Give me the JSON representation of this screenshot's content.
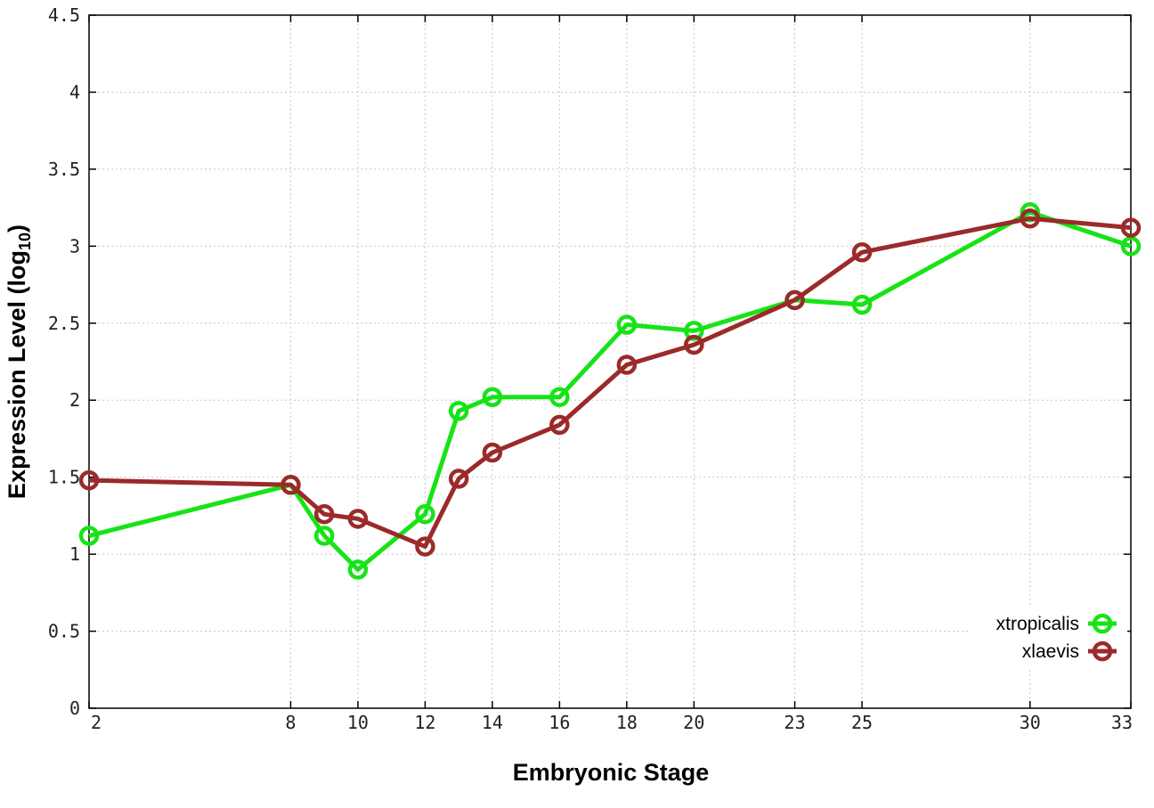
{
  "chart_data": {
    "type": "line",
    "xlabel": "Embryonic Stage",
    "ylabel": {
      "main": "Expression Level (log",
      "sub": "10",
      "close": ")"
    },
    "x_ticks": [
      "2",
      "8",
      "10",
      "12",
      "14",
      "16",
      "18",
      "20",
      "23",
      "25",
      "30",
      "33"
    ],
    "y_ticks": [
      "0",
      "0.5",
      "1",
      "1.5",
      "2",
      "2.5",
      "3",
      "3.5",
      "4",
      "4.5"
    ],
    "ylim": [
      0,
      4.5
    ],
    "xlim": [
      2,
      33
    ],
    "grid": true,
    "legend": "bottom-right",
    "x": [
      2,
      8,
      9,
      10,
      12,
      13,
      14,
      16,
      18,
      20,
      23,
      25,
      30,
      33
    ],
    "series": [
      {
        "name": "xtropicalis",
        "color": "#17e317",
        "values": [
          1.12,
          1.45,
          1.12,
          0.9,
          1.26,
          1.93,
          2.02,
          2.02,
          2.49,
          2.45,
          2.65,
          2.62,
          3.22,
          3.0
        ]
      },
      {
        "name": "xlaevis",
        "color": "#9b2a2a",
        "values": [
          1.48,
          1.45,
          1.26,
          1.23,
          1.05,
          1.49,
          1.66,
          1.84,
          2.23,
          2.36,
          2.65,
          2.96,
          3.18,
          3.12
        ]
      }
    ]
  }
}
